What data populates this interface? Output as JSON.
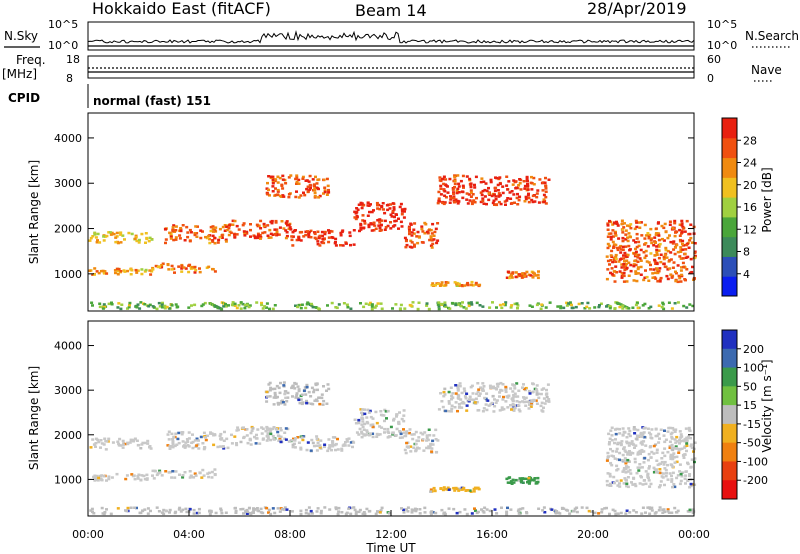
{
  "header": {
    "station": "Hokkaido East (fitACF)",
    "beam": "Beam 14",
    "date": "28/Apr/2019"
  },
  "panels": {
    "nsky": {
      "label": "N.Sky",
      "ticks": [
        "10^5",
        "10^0"
      ]
    },
    "nsearch": {
      "label": "N.Search",
      "ticks": [
        "10^5",
        "10^0"
      ]
    },
    "freq": {
      "label_line1": "Freq.",
      "label_line2": "[MHz]",
      "ticks": [
        "18",
        "8"
      ]
    },
    "nave": {
      "label": "Nave",
      "ticks": [
        "60",
        "0"
      ]
    },
    "cpid": {
      "label": "CPID",
      "program": "normal (fast) 151"
    }
  },
  "colors": {
    "power": [
      "#0a1ef0",
      "#2c4fb8",
      "#3c8a5a",
      "#4aa63a",
      "#a0d040",
      "#f0c020",
      "#f08a10",
      "#f05010",
      "#e82010"
    ],
    "velocity": [
      "#2030c0",
      "#3c6ab0",
      "#3a9a4a",
      "#70c040",
      "#bdbdbd",
      "#f0b020",
      "#f08010",
      "#e84010",
      "#e81010"
    ],
    "ground_scatter": "#c8c8c8"
  },
  "chart_data": [
    {
      "type": "heatmap",
      "title": "Power",
      "ylabel": "Slant Range [km]",
      "xlabel": "",
      "ylim": [
        180,
        4550
      ],
      "xlim_hours": [
        0,
        24
      ],
      "yticks": [
        "1000",
        "2000",
        "3000",
        "4000"
      ],
      "xticks": [],
      "colorbar": {
        "label": "Power [dB]",
        "ticks": [
          "4",
          "8",
          "12",
          "16",
          "20",
          "24",
          "28"
        ],
        "range": [
          0,
          32
        ]
      },
      "echo_bands": [
        {
          "t": [
            0,
            2.5
          ],
          "range_km": [
            1000,
            1150
          ],
          "power_db": 22
        },
        {
          "t": [
            0,
            2.5
          ],
          "range_km": [
            1700,
            1950
          ],
          "power_db": 20
        },
        {
          "t": [
            2.5,
            5.0
          ],
          "range_km": [
            1050,
            1250
          ],
          "power_db": 25
        },
        {
          "t": [
            3.0,
            5.5
          ],
          "range_km": [
            1700,
            2100
          ],
          "power_db": 26
        },
        {
          "t": [
            5.5,
            8.0
          ],
          "range_km": [
            1800,
            2200
          ],
          "power_db": 28
        },
        {
          "t": [
            7.0,
            9.5
          ],
          "range_km": [
            2700,
            3200
          ],
          "power_db": 27
        },
        {
          "t": [
            8.0,
            10.5
          ],
          "range_km": [
            1650,
            2000
          ],
          "power_db": 30
        },
        {
          "t": [
            10.5,
            12.5
          ],
          "range_km": [
            1950,
            2600
          ],
          "power_db": 30
        },
        {
          "t": [
            12.5,
            13.8
          ],
          "range_km": [
            1600,
            2150
          ],
          "power_db": 28
        },
        {
          "t": [
            13.8,
            18.2
          ],
          "range_km": [
            2550,
            3200
          ],
          "power_db": 29
        },
        {
          "t": [
            13.5,
            15.5
          ],
          "range_km": [
            750,
            850
          ],
          "power_db": 22
        },
        {
          "t": [
            16.5,
            17.8
          ],
          "range_km": [
            930,
            1080
          ],
          "power_db": 26
        },
        {
          "t": [
            20.5,
            24.0
          ],
          "range_km": [
            850,
            2200
          ],
          "power_db": 26
        },
        {
          "t": [
            0,
            24.0
          ],
          "range_km": [
            250,
            400
          ],
          "power_db": 14
        }
      ]
    },
    {
      "type": "heatmap",
      "title": "Velocity",
      "ylabel": "Slant Range [km]",
      "xlabel": "Time UT",
      "ylim": [
        180,
        4550
      ],
      "xlim_hours": [
        0,
        24
      ],
      "yticks": [
        "1000",
        "2000",
        "3000",
        "4000"
      ],
      "xticks": [
        "00:00",
        "04:00",
        "08:00",
        "12:00",
        "16:00",
        "20:00",
        "00:00"
      ],
      "colorbar": {
        "label": "Velocity [m s⁻¹]",
        "ticks": [
          "200",
          "100",
          "50",
          "15",
          "-15",
          "-50",
          "-100",
          "-200"
        ],
        "range": [
          -250,
          250
        ]
      },
      "echo_bands": [
        {
          "t": [
            0,
            2.5
          ],
          "range_km": [
            1000,
            1150
          ],
          "velocity": 0
        },
        {
          "t": [
            0,
            2.5
          ],
          "range_km": [
            1700,
            1950
          ],
          "velocity": 0
        },
        {
          "t": [
            2.5,
            5.0
          ],
          "range_km": [
            1050,
            1250
          ],
          "velocity": 0
        },
        {
          "t": [
            3.0,
            5.5
          ],
          "range_km": [
            1700,
            2100
          ],
          "velocity": 0
        },
        {
          "t": [
            5.5,
            8.0
          ],
          "range_km": [
            1800,
            2200
          ],
          "velocity": 0
        },
        {
          "t": [
            7.0,
            9.5
          ],
          "range_km": [
            2700,
            3200
          ],
          "velocity": -40
        },
        {
          "t": [
            8.0,
            10.5
          ],
          "range_km": [
            1650,
            2000
          ],
          "velocity": 0
        },
        {
          "t": [
            10.5,
            12.5
          ],
          "range_km": [
            1950,
            2600
          ],
          "velocity": 0
        },
        {
          "t": [
            12.5,
            13.8
          ],
          "range_km": [
            1600,
            2150
          ],
          "velocity": 0
        },
        {
          "t": [
            13.8,
            18.2
          ],
          "range_km": [
            2550,
            3200
          ],
          "velocity": 0
        },
        {
          "t": [
            13.5,
            15.5
          ],
          "range_km": [
            750,
            850
          ],
          "velocity": -60
        },
        {
          "t": [
            16.5,
            17.8
          ],
          "range_km": [
            930,
            1080
          ],
          "velocity": 40
        },
        {
          "t": [
            20.5,
            24.0
          ],
          "range_km": [
            850,
            2200
          ],
          "velocity": 0
        },
        {
          "t": [
            0,
            24.0
          ],
          "range_km": [
            250,
            400
          ],
          "velocity": -30
        }
      ]
    }
  ]
}
